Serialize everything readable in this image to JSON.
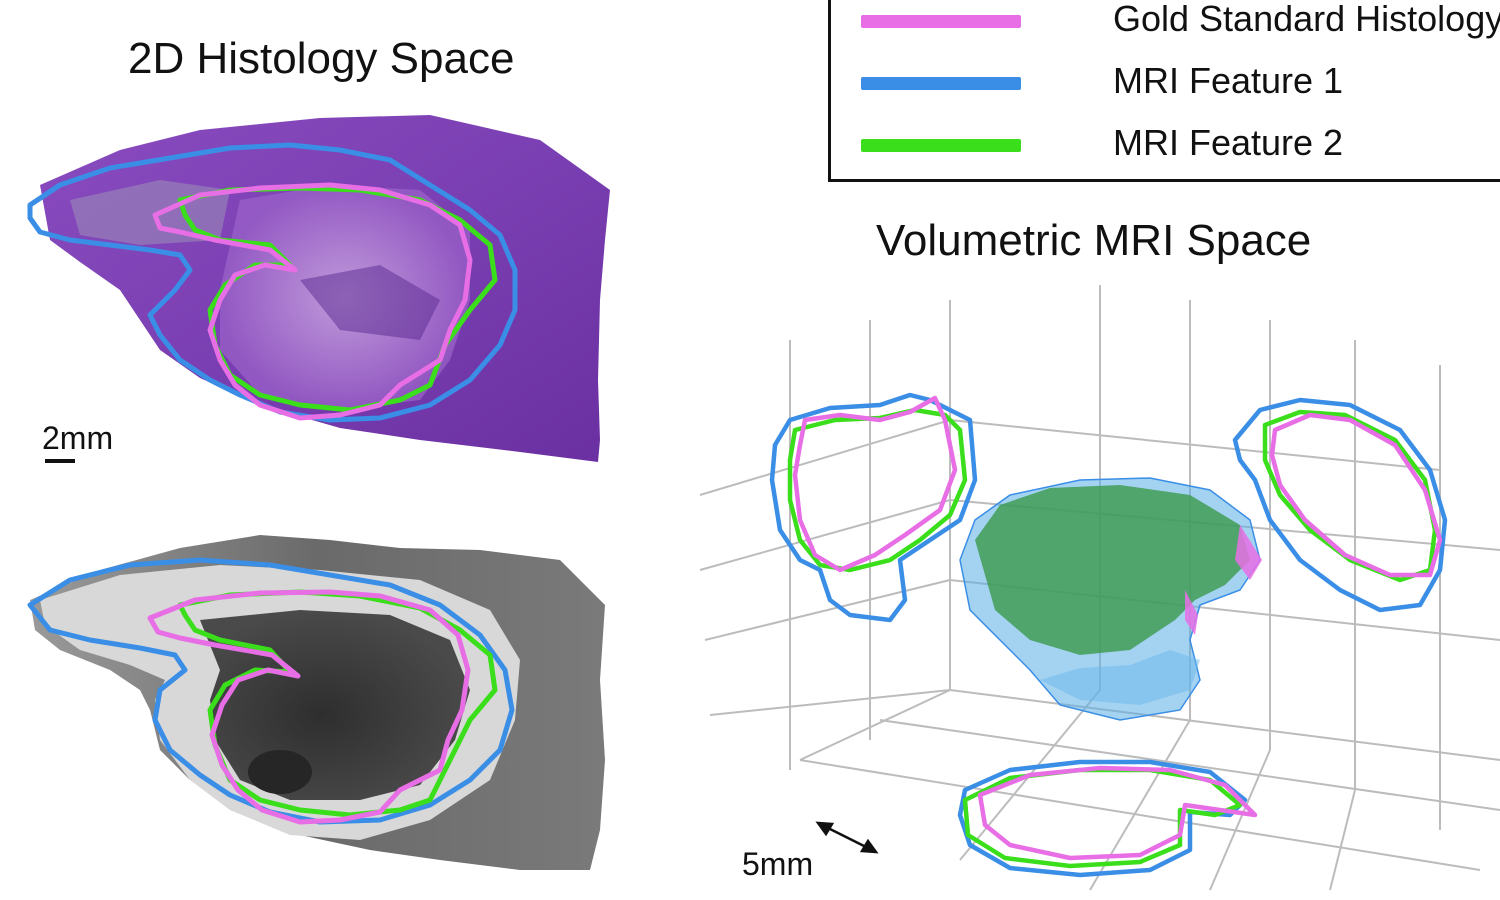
{
  "titles": {
    "histology": "2D Histology Space",
    "mri": "Volumetric MRI Space"
  },
  "scale_bars": {
    "histology": "2mm",
    "mri": "5mm"
  },
  "legend": {
    "items": [
      {
        "label": "Gold Standard Histology",
        "color": "#e86ee6"
      },
      {
        "label": "MRI Feature 1",
        "color": "#3a8ee6"
      },
      {
        "label": "MRI Feature 2",
        "color": "#3ade1a"
      }
    ]
  },
  "colors": {
    "histology_tissue": "#7b3fb0",
    "mri_tissue": "#5a5a5a",
    "grid": "#b8b8b8",
    "volume_blue": "#5aaee8",
    "volume_green": "#3a9a4a"
  }
}
